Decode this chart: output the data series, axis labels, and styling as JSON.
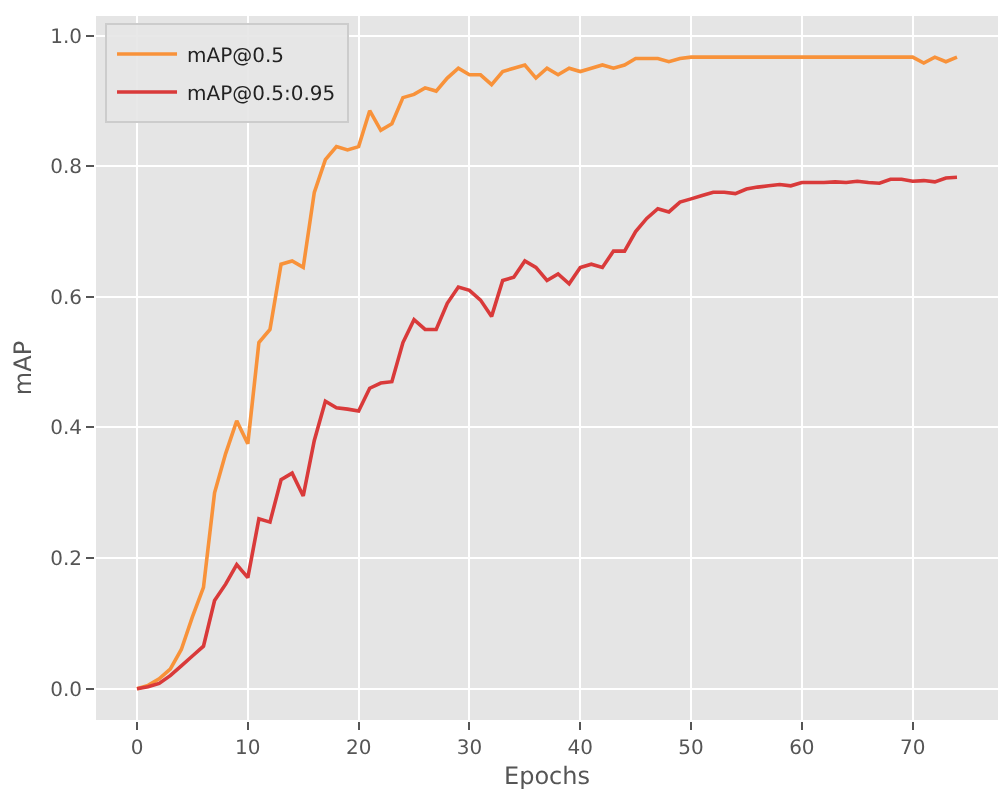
{
  "chart_data": {
    "type": "line",
    "xlabel": "Epochs",
    "ylabel": "mAP",
    "x": [
      0,
      1,
      2,
      3,
      4,
      5,
      6,
      7,
      8,
      9,
      10,
      11,
      12,
      13,
      14,
      15,
      16,
      17,
      18,
      19,
      20,
      21,
      22,
      23,
      24,
      25,
      26,
      27,
      28,
      29,
      30,
      31,
      32,
      33,
      34,
      35,
      36,
      37,
      38,
      39,
      40,
      41,
      42,
      43,
      44,
      45,
      46,
      47,
      48,
      49,
      50,
      51,
      52,
      53,
      54,
      55,
      56,
      57,
      58,
      59,
      60,
      61,
      62,
      63,
      64,
      65,
      66,
      67,
      68,
      69,
      70,
      71,
      72,
      73,
      74
    ],
    "series": [
      {
        "name": "mAP@0.5",
        "color": "#f8923a",
        "values": [
          0.0,
          0.005,
          0.015,
          0.03,
          0.06,
          0.11,
          0.155,
          0.3,
          0.36,
          0.41,
          0.375,
          0.53,
          0.55,
          0.65,
          0.655,
          0.645,
          0.76,
          0.81,
          0.83,
          0.825,
          0.83,
          0.885,
          0.855,
          0.865,
          0.905,
          0.91,
          0.92,
          0.915,
          0.935,
          0.95,
          0.94,
          0.94,
          0.925,
          0.945,
          0.95,
          0.955,
          0.935,
          0.95,
          0.94,
          0.95,
          0.945,
          0.95,
          0.955,
          0.95,
          0.955,
          0.965,
          0.965,
          0.965,
          0.96,
          0.965,
          0.967,
          0.967,
          0.967,
          0.967,
          0.967,
          0.967,
          0.967,
          0.967,
          0.967,
          0.967,
          0.967,
          0.967,
          0.967,
          0.967,
          0.967,
          0.967,
          0.967,
          0.967,
          0.967,
          0.967,
          0.967,
          0.958,
          0.967,
          0.96,
          0.967
        ]
      },
      {
        "name": "mAP@0.5:0.95",
        "color": "#d93a3a",
        "values": [
          0.0,
          0.003,
          0.008,
          0.02,
          0.035,
          0.05,
          0.065,
          0.135,
          0.16,
          0.19,
          0.17,
          0.26,
          0.255,
          0.32,
          0.33,
          0.295,
          0.38,
          0.44,
          0.43,
          0.428,
          0.425,
          0.46,
          0.468,
          0.47,
          0.53,
          0.565,
          0.55,
          0.55,
          0.59,
          0.615,
          0.61,
          0.595,
          0.57,
          0.625,
          0.63,
          0.655,
          0.645,
          0.625,
          0.635,
          0.62,
          0.645,
          0.65,
          0.645,
          0.67,
          0.67,
          0.7,
          0.72,
          0.735,
          0.73,
          0.745,
          0.75,
          0.755,
          0.76,
          0.76,
          0.758,
          0.765,
          0.768,
          0.77,
          0.772,
          0.77,
          0.775,
          0.775,
          0.775,
          0.776,
          0.775,
          0.777,
          0.775,
          0.774,
          0.78,
          0.78,
          0.777,
          0.778,
          0.776,
          0.782,
          0.783
        ]
      }
    ],
    "xlim": [
      -3.7,
      77.7
    ],
    "xticks": [
      0,
      10,
      20,
      30,
      40,
      50,
      60,
      70
    ],
    "ylim": [
      -0.048,
      1.03
    ],
    "yticks": [
      {
        "value": 0,
        "label": "0.0"
      },
      0.2,
      0.4,
      0.6,
      0.8,
      {
        "value": 1,
        "label": "1.0"
      }
    ],
    "grid": true,
    "legend": "top left",
    "marker": "none",
    "line_style": "solid"
  }
}
